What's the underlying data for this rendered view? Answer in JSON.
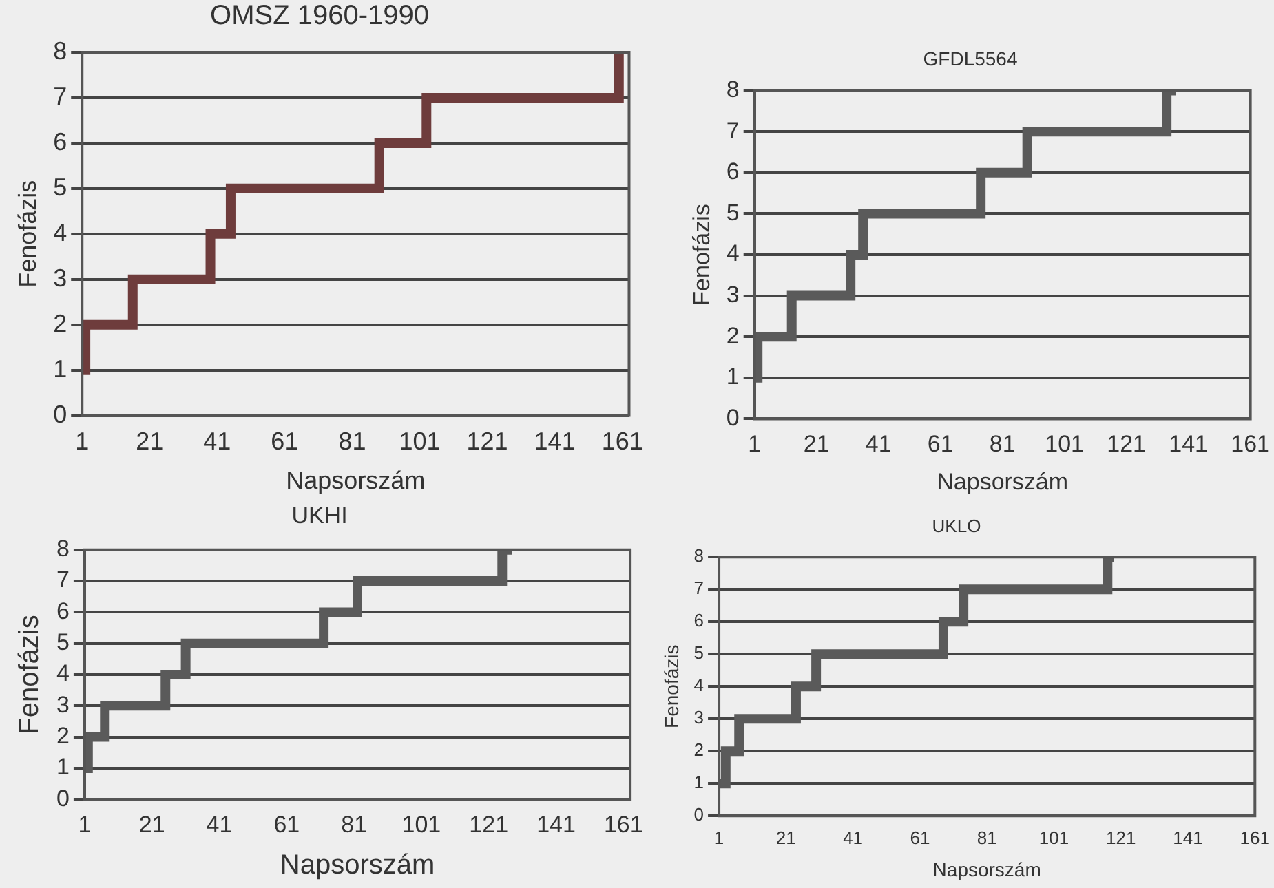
{
  "chart_data": [
    {
      "type": "step",
      "title": "OMSZ 1960-1990",
      "xlabel": "Napsorszám",
      "ylabel": "Fenofázis",
      "x": [
        1,
        2,
        16,
        39,
        45,
        89,
        103,
        160,
        161
      ],
      "series": [
        {
          "color": "#6e3c3c",
          "values": [
            1,
            2,
            3,
            4,
            5,
            6,
            7,
            8,
            8
          ]
        }
      ],
      "xlim": [
        1,
        163
      ],
      "xticks": [
        1,
        21,
        41,
        61,
        81,
        101,
        121,
        141,
        161
      ],
      "ylim": [
        0,
        8
      ],
      "yticks": [
        0,
        1,
        2,
        3,
        4,
        5,
        6,
        7,
        8
      ],
      "grid": "y",
      "marker": "none"
    },
    {
      "type": "step",
      "title": "GFDL5564",
      "xlabel": "Napsorszám",
      "ylabel": "Fenofázis",
      "x": [
        1,
        2,
        13,
        32,
        36,
        74,
        89,
        134,
        137
      ],
      "series": [
        {
          "color": "#5a5a5a",
          "values": [
            1,
            2,
            3,
            4,
            5,
            6,
            7,
            8,
            8
          ]
        }
      ],
      "xlim": [
        1,
        161
      ],
      "xticks": [
        1,
        21,
        41,
        61,
        81,
        101,
        121,
        141,
        161
      ],
      "ylim": [
        0,
        8
      ],
      "yticks": [
        0,
        1,
        2,
        3,
        4,
        5,
        6,
        7,
        8
      ],
      "grid": "y",
      "marker": "none"
    },
    {
      "type": "step",
      "title": "UKHI",
      "xlabel": "Napsorszám",
      "ylabel": "Fenofázis",
      "x": [
        1,
        2,
        7,
        25,
        31,
        72,
        82,
        125,
        128
      ],
      "series": [
        {
          "color": "#5a5a5a",
          "values": [
            1,
            2,
            3,
            4,
            5,
            6,
            7,
            8,
            8
          ]
        }
      ],
      "xlim": [
        1,
        163
      ],
      "xticks": [
        1,
        21,
        41,
        61,
        81,
        101,
        121,
        141,
        161
      ],
      "ylim": [
        0,
        8
      ],
      "yticks": [
        0,
        1,
        2,
        3,
        4,
        5,
        6,
        7,
        8
      ],
      "grid": "y",
      "marker": "none"
    },
    {
      "type": "step",
      "title": "UKLO",
      "xlabel": "Napsorszám",
      "ylabel": "Fenofázis",
      "x": [
        1,
        3,
        7,
        24,
        30,
        68,
        74,
        117,
        119
      ],
      "series": [
        {
          "color": "#5a5a5a",
          "values": [
            1,
            2,
            3,
            4,
            5,
            6,
            7,
            8,
            8
          ]
        }
      ],
      "xlim": [
        1,
        161
      ],
      "xticks": [
        1,
        21,
        41,
        61,
        81,
        101,
        121,
        141,
        161
      ],
      "ylim": [
        0,
        8
      ],
      "yticks": [
        0,
        1,
        2,
        3,
        4,
        5,
        6,
        7,
        8
      ],
      "grid": "y",
      "marker": "none"
    }
  ]
}
